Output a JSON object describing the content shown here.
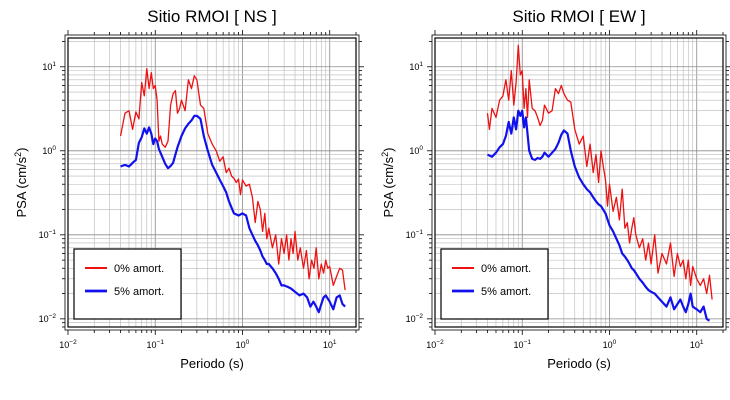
{
  "chart_data": [
    {
      "type": "line",
      "title": "Sitio RMOI [ NS ]",
      "xlabel": "Periodo (s)",
      "ylabel_main": "PSA (cm/s",
      "ylabel_sup": "2",
      "ylabel_tail": ")",
      "xscale": "log",
      "yscale": "log",
      "xlim": [
        0.01,
        20
      ],
      "ylim": [
        0.008,
        22
      ],
      "x_ticks": [
        {
          "value": 0.01,
          "base": "10",
          "exp": "−2"
        },
        {
          "value": 0.1,
          "base": "10",
          "exp": "−1"
        },
        {
          "value": 1,
          "base": "10",
          "exp": "0"
        },
        {
          "value": 10,
          "base": "10",
          "exp": "1"
        }
      ],
      "y_ticks": [
        {
          "value": 0.01,
          "base": "10",
          "exp": "−2"
        },
        {
          "value": 0.1,
          "base": "10",
          "exp": "−1"
        },
        {
          "value": 1,
          "base": "10",
          "exp": "0"
        },
        {
          "value": 10,
          "base": "10",
          "exp": "1"
        }
      ],
      "grid": true,
      "legend_position": "bottom-left",
      "series": [
        {
          "name": "0% amort.",
          "color": "#ee1111",
          "width": 1.3,
          "x": [
            0.04,
            0.045,
            0.05,
            0.055,
            0.06,
            0.065,
            0.07,
            0.075,
            0.08,
            0.085,
            0.09,
            0.095,
            0.1,
            0.105,
            0.11,
            0.115,
            0.12,
            0.13,
            0.14,
            0.15,
            0.16,
            0.17,
            0.18,
            0.19,
            0.2,
            0.22,
            0.24,
            0.26,
            0.28,
            0.3,
            0.33,
            0.36,
            0.4,
            0.45,
            0.5,
            0.55,
            0.6,
            0.65,
            0.7,
            0.75,
            0.8,
            0.85,
            0.9,
            0.95,
            1.0,
            1.1,
            1.2,
            1.3,
            1.4,
            1.5,
            1.6,
            1.7,
            1.8,
            1.9,
            2.0,
            2.2,
            2.4,
            2.6,
            2.8,
            3.0,
            3.2,
            3.4,
            3.6,
            3.8,
            4.0,
            4.3,
            4.6,
            5.0,
            5.4,
            5.8,
            6.2,
            6.6,
            7.0,
            7.5,
            8.0,
            8.5,
            9.0,
            9.5,
            10,
            11,
            12,
            13,
            14,
            15
          ],
          "y": [
            1.5,
            2.8,
            3.0,
            1.8,
            2.9,
            2.4,
            6.5,
            4.5,
            9.5,
            5.5,
            8.5,
            5.5,
            6.0,
            4.0,
            1.3,
            1.5,
            1.2,
            1.1,
            1.3,
            3.5,
            4.8,
            5.2,
            2.8,
            3.2,
            4.0,
            3.0,
            7.0,
            5.5,
            7.8,
            7.0,
            3.5,
            3.2,
            1.6,
            1.2,
            1.0,
            0.75,
            0.85,
            0.55,
            0.62,
            0.5,
            0.47,
            0.42,
            0.46,
            0.3,
            0.45,
            0.38,
            0.4,
            0.28,
            0.14,
            0.25,
            0.2,
            0.11,
            0.18,
            0.09,
            0.12,
            0.07,
            0.1,
            0.045,
            0.09,
            0.06,
            0.1,
            0.05,
            0.09,
            0.06,
            0.11,
            0.05,
            0.07,
            0.04,
            0.065,
            0.03,
            0.05,
            0.04,
            0.07,
            0.03,
            0.045,
            0.035,
            0.05,
            0.04,
            0.042,
            0.025,
            0.032,
            0.04,
            0.038,
            0.022
          ]
        },
        {
          "name": "5% amort.",
          "color": "#1111ee",
          "width": 2.2,
          "x": [
            0.04,
            0.045,
            0.05,
            0.055,
            0.06,
            0.065,
            0.07,
            0.075,
            0.08,
            0.085,
            0.09,
            0.095,
            0.1,
            0.105,
            0.11,
            0.12,
            0.13,
            0.14,
            0.15,
            0.16,
            0.17,
            0.18,
            0.2,
            0.22,
            0.24,
            0.26,
            0.28,
            0.3,
            0.33,
            0.36,
            0.4,
            0.45,
            0.5,
            0.55,
            0.6,
            0.65,
            0.7,
            0.75,
            0.8,
            0.9,
            1.0,
            1.1,
            1.2,
            1.3,
            1.4,
            1.5,
            1.6,
            1.7,
            1.8,
            1.9,
            2.0,
            2.2,
            2.4,
            2.6,
            2.8,
            3.0,
            3.3,
            3.6,
            4.0,
            4.5,
            5.0,
            5.5,
            6.0,
            6.5,
            7.0,
            7.5,
            8.0,
            8.5,
            9.0,
            10,
            11,
            12,
            13,
            14,
            15
          ],
          "y": [
            0.65,
            0.68,
            0.65,
            0.72,
            0.78,
            1.25,
            1.45,
            1.85,
            1.6,
            1.9,
            1.6,
            1.2,
            1.4,
            1.3,
            1.05,
            0.85,
            0.7,
            0.62,
            0.66,
            0.72,
            0.9,
            1.1,
            1.5,
            1.85,
            2.1,
            2.3,
            2.6,
            2.6,
            2.4,
            1.5,
            1.0,
            0.68,
            0.55,
            0.45,
            0.38,
            0.32,
            0.25,
            0.21,
            0.18,
            0.17,
            0.18,
            0.17,
            0.12,
            0.1,
            0.085,
            0.075,
            0.065,
            0.055,
            0.05,
            0.045,
            0.045,
            0.04,
            0.035,
            0.03,
            0.025,
            0.025,
            0.024,
            0.023,
            0.021,
            0.019,
            0.02,
            0.018,
            0.014,
            0.016,
            0.014,
            0.012,
            0.015,
            0.018,
            0.019,
            0.016,
            0.013,
            0.018,
            0.019,
            0.015,
            0.014
          ]
        }
      ]
    },
    {
      "type": "line",
      "title": "Sitio RMOI [ EW ]",
      "xlabel": "Periodo (s)",
      "ylabel_main": "PSA (cm/s",
      "ylabel_sup": "2",
      "ylabel_tail": ")",
      "xscale": "log",
      "yscale": "log",
      "xlim": [
        0.01,
        20
      ],
      "ylim": [
        0.008,
        22
      ],
      "x_ticks": [
        {
          "value": 0.01,
          "base": "10",
          "exp": "−2"
        },
        {
          "value": 0.1,
          "base": "10",
          "exp": "−1"
        },
        {
          "value": 1,
          "base": "10",
          "exp": "0"
        },
        {
          "value": 10,
          "base": "10",
          "exp": "1"
        }
      ],
      "y_ticks": [
        {
          "value": 0.01,
          "base": "10",
          "exp": "−2"
        },
        {
          "value": 0.1,
          "base": "10",
          "exp": "−1"
        },
        {
          "value": 1,
          "base": "10",
          "exp": "0"
        },
        {
          "value": 10,
          "base": "10",
          "exp": "1"
        }
      ],
      "grid": true,
      "legend_position": "bottom-left",
      "series": [
        {
          "name": "0% amort.",
          "color": "#ee1111",
          "width": 1.3,
          "x": [
            0.04,
            0.042,
            0.045,
            0.05,
            0.055,
            0.06,
            0.065,
            0.07,
            0.075,
            0.08,
            0.085,
            0.09,
            0.095,
            0.1,
            0.105,
            0.11,
            0.115,
            0.12,
            0.13,
            0.14,
            0.15,
            0.16,
            0.17,
            0.18,
            0.2,
            0.22,
            0.24,
            0.26,
            0.28,
            0.3,
            0.33,
            0.36,
            0.4,
            0.45,
            0.5,
            0.55,
            0.6,
            0.65,
            0.7,
            0.75,
            0.8,
            0.85,
            0.9,
            0.95,
            1.0,
            1.1,
            1.2,
            1.3,
            1.4,
            1.5,
            1.6,
            1.7,
            1.8,
            1.9,
            2.0,
            2.2,
            2.4,
            2.6,
            2.8,
            3.0,
            3.3,
            3.6,
            4.0,
            4.5,
            5.0,
            5.5,
            6.0,
            6.5,
            7.0,
            7.5,
            8.0,
            8.5,
            9.0,
            10,
            11,
            12,
            13,
            14,
            15
          ],
          "y": [
            2.8,
            1.8,
            3.2,
            2.5,
            4.0,
            4.5,
            7.0,
            4.0,
            9.0,
            3.5,
            6.5,
            18.0,
            8.0,
            9.0,
            3.2,
            5.5,
            2.5,
            7.0,
            3.2,
            3.0,
            2.5,
            2.0,
            2.3,
            3.5,
            2.8,
            3.0,
            5.5,
            4.8,
            6.0,
            4.8,
            4.0,
            3.8,
            1.8,
            1.2,
            1.5,
            0.65,
            1.2,
            0.55,
            0.9,
            0.42,
            1.0,
            0.65,
            0.45,
            0.22,
            0.4,
            0.19,
            0.28,
            0.15,
            0.35,
            0.12,
            0.14,
            0.08,
            0.12,
            0.16,
            0.1,
            0.07,
            0.09,
            0.05,
            0.08,
            0.045,
            0.1,
            0.035,
            0.06,
            0.045,
            0.08,
            0.032,
            0.06,
            0.042,
            0.05,
            0.03,
            0.05,
            0.025,
            0.042,
            0.03,
            0.025,
            0.03,
            0.02,
            0.033,
            0.017
          ]
        },
        {
          "name": "5% amort.",
          "color": "#1111ee",
          "width": 2.2,
          "x": [
            0.04,
            0.045,
            0.05,
            0.055,
            0.06,
            0.065,
            0.07,
            0.075,
            0.08,
            0.085,
            0.09,
            0.095,
            0.1,
            0.105,
            0.11,
            0.12,
            0.13,
            0.14,
            0.15,
            0.16,
            0.17,
            0.18,
            0.2,
            0.22,
            0.24,
            0.26,
            0.28,
            0.3,
            0.33,
            0.36,
            0.4,
            0.45,
            0.5,
            0.55,
            0.6,
            0.65,
            0.7,
            0.75,
            0.8,
            0.9,
            1.0,
            1.1,
            1.2,
            1.3,
            1.4,
            1.5,
            1.6,
            1.7,
            1.8,
            1.9,
            2.0,
            2.2,
            2.4,
            2.6,
            2.8,
            3.0,
            3.3,
            3.6,
            4.0,
            4.5,
            5.0,
            5.5,
            6.0,
            6.5,
            7.0,
            7.5,
            8.0,
            8.5,
            9.0,
            10,
            11,
            12,
            13,
            14
          ],
          "y": [
            0.9,
            0.85,
            0.95,
            1.1,
            1.2,
            1.5,
            2.2,
            1.6,
            2.5,
            1.8,
            3.0,
            2.6,
            3.0,
            1.9,
            2.5,
            1.0,
            0.8,
            0.78,
            0.82,
            0.8,
            0.85,
            0.95,
            0.85,
            0.95,
            1.05,
            1.25,
            1.55,
            1.75,
            1.6,
            1.0,
            0.65,
            0.48,
            0.4,
            0.35,
            0.32,
            0.28,
            0.25,
            0.23,
            0.22,
            0.18,
            0.13,
            0.11,
            0.09,
            0.075,
            0.06,
            0.055,
            0.05,
            0.045,
            0.04,
            0.038,
            0.035,
            0.03,
            0.027,
            0.024,
            0.022,
            0.021,
            0.02,
            0.018,
            0.016,
            0.014,
            0.018,
            0.013,
            0.015,
            0.017,
            0.014,
            0.012,
            0.015,
            0.02,
            0.014,
            0.013,
            0.012,
            0.014,
            0.01,
            0.0095
          ]
        }
      ]
    }
  ]
}
